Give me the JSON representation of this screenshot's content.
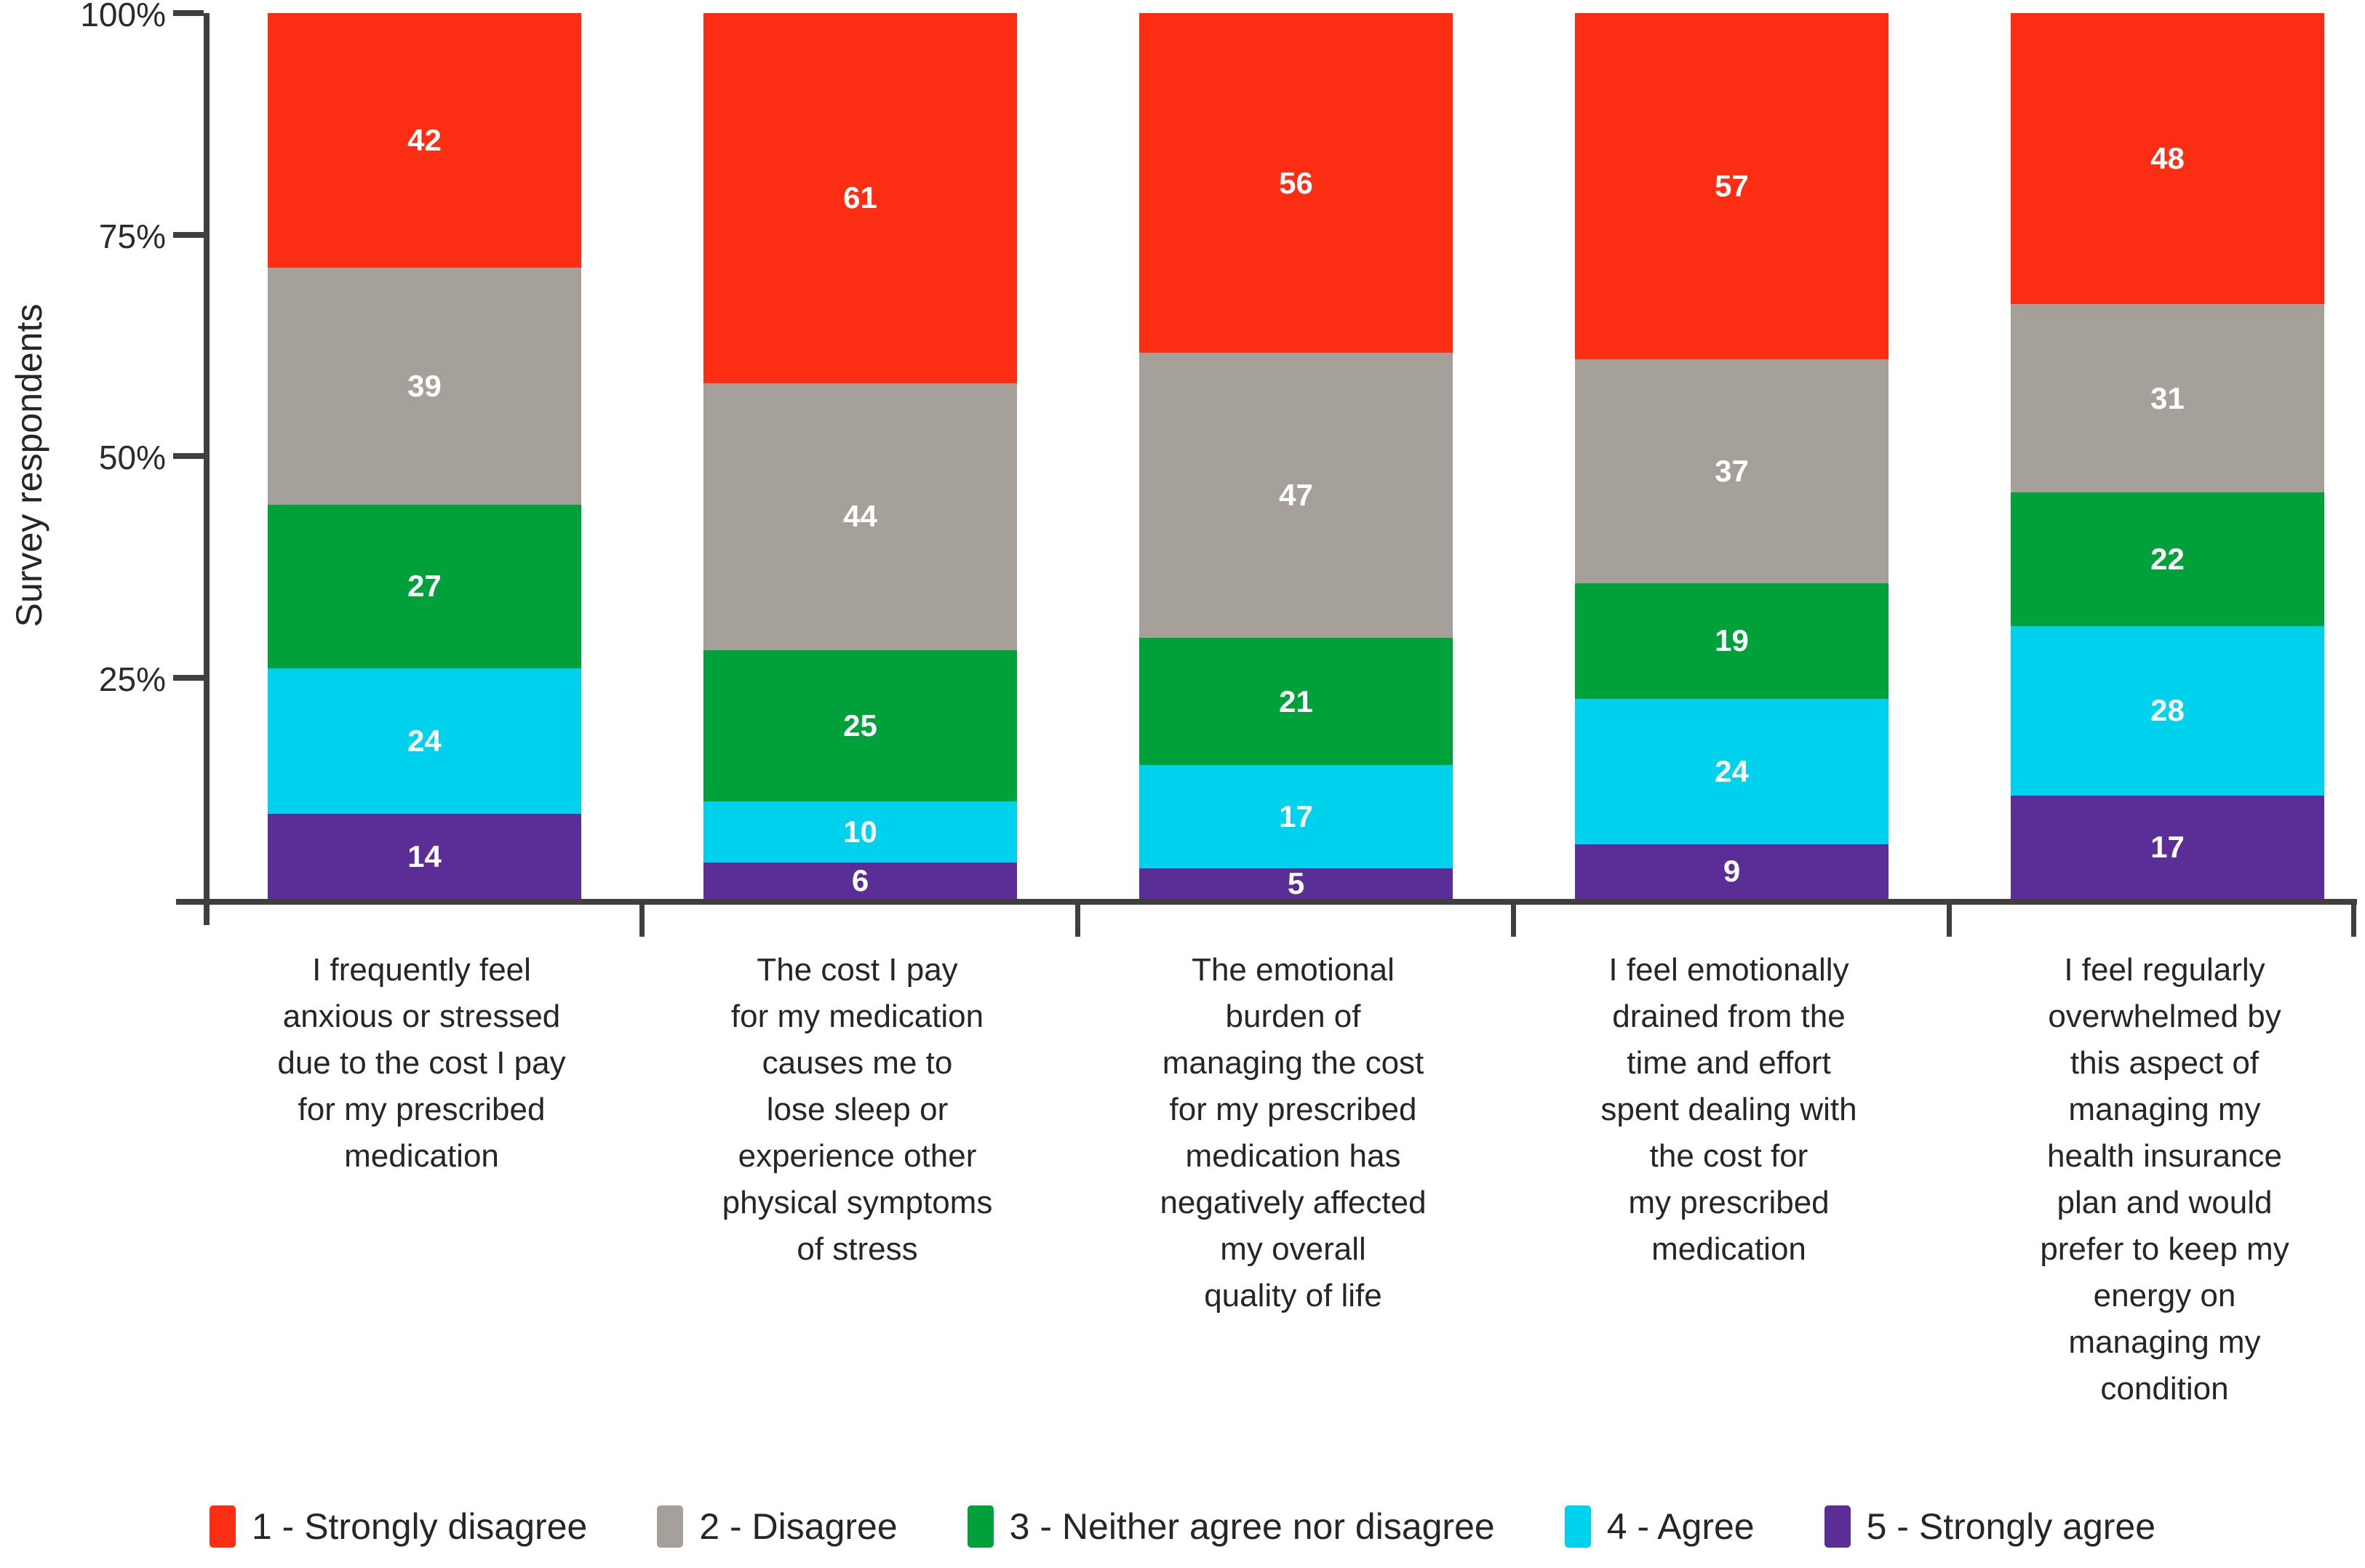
{
  "chart_data": {
    "type": "bar",
    "stacked": true,
    "stacking": "percent_of_total",
    "total_per_bar": 146,
    "title": "",
    "xlabel": "",
    "ylabel": "Survey respondents",
    "ylim": [
      0,
      100
    ],
    "grid": false,
    "legend_position": "bottom",
    "value_labels_color": "#FFFFFF",
    "yticks": [
      {
        "value": 100,
        "label": "100%"
      },
      {
        "value": 75,
        "label": "75%"
      },
      {
        "value": 50,
        "label": "50%"
      },
      {
        "value": 25,
        "label": "25%"
      }
    ],
    "categories": [
      "I frequently feel anxious or stressed due to the cost I pay for my prescribed medication",
      "The cost I pay for my medication causes me to lose sleep or experience other physical symptoms of stress",
      "The emotional burden of managing the cost for my prescribed medication has negatively affected my overall quality of life",
      "I feel emotionally drained from the time and effort spent dealing with the cost for my prescribed medication",
      "I feel regularly overwhelmed by this aspect of managing my health insurance plan and would prefer to keep my energy on managing my condition"
    ],
    "category_label_lines": [
      [
        "I frequently feel",
        "anxious or stressed",
        "due to the cost I pay",
        "for my prescribed",
        "medication"
      ],
      [
        "The cost I pay",
        "for my medication",
        "causes me to",
        "lose sleep or",
        "experience other",
        "physical symptoms",
        "of stress"
      ],
      [
        "The emotional",
        "burden of",
        "managing the cost",
        "for my prescribed",
        "medication has",
        "negatively affected",
        "my overall",
        "quality of life"
      ],
      [
        "I feel emotionally",
        "drained from the",
        "time and effort",
        "spent dealing with",
        "the cost for",
        "my prescribed",
        "medication"
      ],
      [
        "I feel regularly",
        "overwhelmed by",
        "this aspect of",
        "managing my",
        "health insurance",
        "plan and would",
        "prefer to keep my",
        "energy on",
        "managing my",
        "condition"
      ]
    ],
    "series": [
      {
        "name": "1 - Strongly disagree",
        "color": "#FB2D13",
        "values": [
          42,
          61,
          56,
          57,
          48
        ]
      },
      {
        "name": "2 - Disagree",
        "color": "#A5A09A",
        "values": [
          39,
          44,
          47,
          37,
          31
        ]
      },
      {
        "name": "3 - Neither agree nor disagree",
        "color": "#00A03A",
        "values": [
          27,
          25,
          21,
          19,
          22
        ]
      },
      {
        "name": "4 - Agree",
        "color": "#00D2EE",
        "values": [
          24,
          10,
          17,
          24,
          28
        ]
      },
      {
        "name": "5 - Strongly agree",
        "color": "#5B2E97",
        "values": [
          14,
          6,
          5,
          9,
          17
        ]
      }
    ],
    "stack_order": "first_series_on_top"
  },
  "colors": {
    "axis": "#3F3F3F",
    "text": "#262626"
  }
}
